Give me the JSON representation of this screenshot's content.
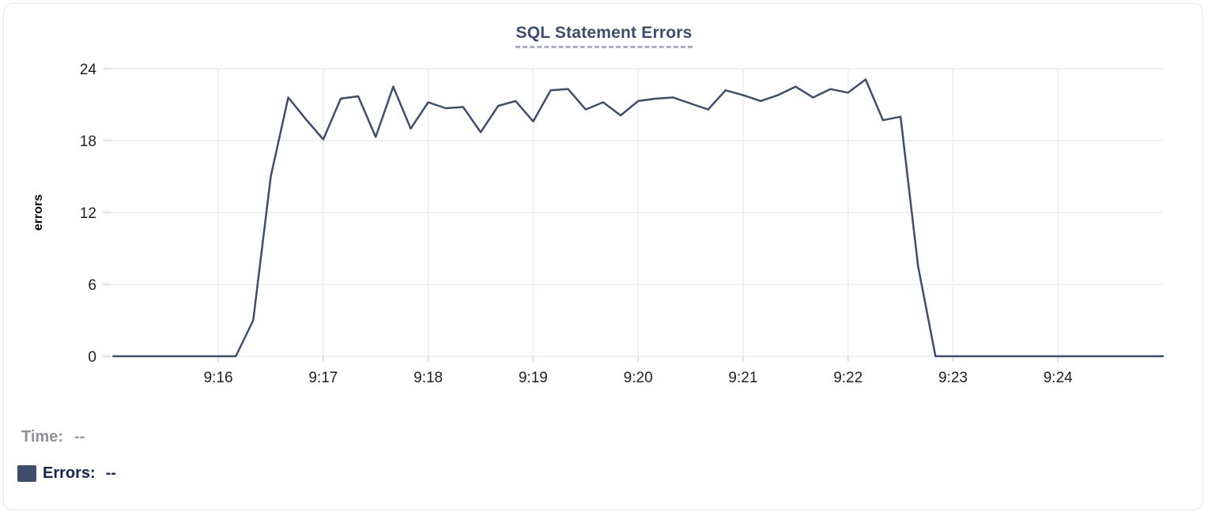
{
  "card": {
    "background": "#ffffff",
    "border_color": "#e2e4e8"
  },
  "chart_data": {
    "type": "line",
    "title": "SQL Statement Errors",
    "xlabel": "",
    "ylabel": "errors",
    "grid": true,
    "legend_position": "none",
    "ylim": [
      0,
      24.7
    ],
    "yticks": [
      0,
      6,
      12,
      18,
      24
    ],
    "x_unit": "minutes_after_9:00",
    "xlim": [
      14.975,
      25.0
    ],
    "xticks": [
      {
        "t": 16,
        "label": "9:16"
      },
      {
        "t": 17,
        "label": "9:17"
      },
      {
        "t": 18,
        "label": "9:18"
      },
      {
        "t": 19,
        "label": "9:19"
      },
      {
        "t": 20,
        "label": "9:20"
      },
      {
        "t": 21,
        "label": "9:21"
      },
      {
        "t": 22,
        "label": "9:22"
      },
      {
        "t": 23,
        "label": "9:23"
      },
      {
        "t": 24,
        "label": "9:24"
      }
    ],
    "series": [
      {
        "name": "Errors",
        "color": "#3e4e6c",
        "points": [
          [
            15.0,
            0
          ],
          [
            15.167,
            0
          ],
          [
            15.333,
            0
          ],
          [
            15.5,
            0
          ],
          [
            15.667,
            0
          ],
          [
            15.833,
            0
          ],
          [
            16.0,
            0
          ],
          [
            16.167,
            0
          ],
          [
            16.333,
            3
          ],
          [
            16.5,
            15
          ],
          [
            16.667,
            21.6
          ],
          [
            16.833,
            19.8
          ],
          [
            17.0,
            18.1
          ],
          [
            17.167,
            21.5
          ],
          [
            17.333,
            21.7
          ],
          [
            17.5,
            18.3
          ],
          [
            17.667,
            22.5
          ],
          [
            17.833,
            19.0
          ],
          [
            18.0,
            21.2
          ],
          [
            18.167,
            20.7
          ],
          [
            18.333,
            20.8
          ],
          [
            18.5,
            18.7
          ],
          [
            18.667,
            20.9
          ],
          [
            18.833,
            21.3
          ],
          [
            19.0,
            19.6
          ],
          [
            19.167,
            22.2
          ],
          [
            19.333,
            22.3
          ],
          [
            19.5,
            20.6
          ],
          [
            19.667,
            21.2
          ],
          [
            19.833,
            20.1
          ],
          [
            20.0,
            21.3
          ],
          [
            20.167,
            21.5
          ],
          [
            20.333,
            21.6
          ],
          [
            20.5,
            21.1
          ],
          [
            20.667,
            20.6
          ],
          [
            20.833,
            22.2
          ],
          [
            21.0,
            21.8
          ],
          [
            21.167,
            21.3
          ],
          [
            21.333,
            21.8
          ],
          [
            21.5,
            22.5
          ],
          [
            21.667,
            21.6
          ],
          [
            21.833,
            22.3
          ],
          [
            22.0,
            22.0
          ],
          [
            22.167,
            23.1
          ],
          [
            22.333,
            19.7
          ],
          [
            22.5,
            20.0
          ],
          [
            22.667,
            7.5
          ],
          [
            22.833,
            0
          ],
          [
            23.0,
            0
          ],
          [
            23.167,
            0
          ],
          [
            23.333,
            0
          ],
          [
            23.5,
            0
          ],
          [
            23.667,
            0
          ],
          [
            23.833,
            0
          ],
          [
            24.0,
            0
          ],
          [
            24.167,
            0
          ],
          [
            24.333,
            0
          ],
          [
            24.5,
            0
          ],
          [
            24.667,
            0
          ],
          [
            24.833,
            0
          ],
          [
            25.0,
            0
          ]
        ]
      }
    ]
  },
  "tooltip_readout": {
    "time_label": "Time:",
    "time_value": "--",
    "errors_label": "Errors:",
    "errors_value": "--",
    "swatch_color": "#3d4d6b"
  },
  "colors": {
    "grid": "#ececec",
    "tick": "#d9d9d9",
    "axis_text": "#212121",
    "ylabel_text": "#0a0a0a",
    "title_text": "#3c4d6e",
    "title_underline": "#a9b2c5",
    "line": "#3e4e6c"
  }
}
